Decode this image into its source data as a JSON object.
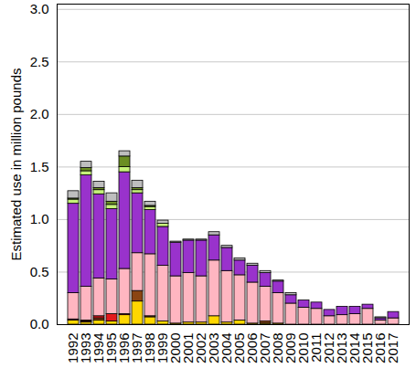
{
  "chart_data": {
    "type": "bar",
    "stacked": true,
    "y_label": "Estimated use in million pounds",
    "categories": [
      "1992",
      "1993",
      "1994",
      "1995",
      "1996",
      "1997",
      "1998",
      "1999",
      "2000",
      "2001",
      "2002",
      "2003",
      "2004",
      "2005",
      "2006",
      "2007",
      "2008",
      "2009",
      "2010",
      "2011",
      "2012",
      "2013",
      "2014",
      "2015",
      "2016",
      "2017"
    ],
    "series": [
      {
        "color": "#ffd700",
        "values": [
          0.04,
          0.02,
          0.04,
          0.03,
          0.09,
          0.22,
          0.07,
          0.03,
          0.01,
          0.02,
          0.02,
          0.08,
          0.02,
          0.04,
          0.01,
          0.01,
          0.01,
          0,
          0,
          0,
          0,
          0,
          0,
          0,
          0,
          0
        ]
      },
      {
        "color": "#8b4513",
        "values": [
          0,
          0.01,
          0.02,
          0,
          0,
          0.1,
          0.01,
          0,
          0,
          0,
          0,
          0,
          0,
          0,
          0,
          0.02,
          0,
          0,
          0,
          0,
          0,
          0,
          0,
          0,
          0,
          0
        ]
      },
      {
        "color": "#e31a1c",
        "values": [
          0.01,
          0.01,
          0.02,
          0.07,
          0.01,
          0,
          0,
          0,
          0,
          0,
          0,
          0,
          0,
          0,
          0,
          0,
          0,
          0,
          0,
          0,
          0,
          0,
          0,
          0,
          0,
          0
        ]
      },
      {
        "color": "#ffb6c1",
        "values": [
          0.25,
          0.32,
          0.36,
          0.33,
          0.43,
          0.36,
          0.59,
          0.53,
          0.45,
          0.47,
          0.44,
          0.53,
          0.49,
          0.43,
          0.39,
          0.33,
          0.29,
          0.2,
          0.16,
          0.15,
          0.08,
          0.09,
          0.1,
          0.15,
          0.04,
          0.06
        ]
      },
      {
        "color": "#9932cc",
        "values": [
          0.85,
          1.06,
          0.8,
          0.67,
          0.92,
          0.57,
          0.42,
          0.37,
          0.32,
          0.31,
          0.34,
          0.24,
          0.22,
          0.14,
          0.16,
          0.13,
          0.11,
          0.08,
          0.07,
          0.06,
          0.06,
          0.08,
          0.07,
          0.04,
          0.02,
          0.06
        ]
      },
      {
        "color": "#c6f27a",
        "values": [
          0.04,
          0.04,
          0.04,
          0.04,
          0.05,
          0.03,
          0.03,
          0.03,
          0,
          0,
          0,
          0,
          0,
          0,
          0,
          0,
          0,
          0,
          0,
          0,
          0,
          0,
          0,
          0,
          0,
          0
        ]
      },
      {
        "color": "#6b8e23",
        "values": [
          0.01,
          0.03,
          0.02,
          0.03,
          0.1,
          0.02,
          0.01,
          0,
          0,
          0,
          0,
          0,
          0,
          0,
          0,
          0,
          0,
          0,
          0,
          0,
          0,
          0,
          0,
          0,
          0,
          0
        ]
      },
      {
        "color": "#bebebe",
        "values": [
          0.07,
          0.06,
          0.06,
          0.08,
          0.05,
          0.07,
          0.04,
          0.03,
          0.01,
          0.01,
          0.01,
          0.03,
          0.02,
          0.02,
          0.02,
          0.02,
          0.01,
          0.02,
          0,
          0,
          0,
          0,
          0,
          0,
          0.01,
          0
        ]
      }
    ],
    "ylim": [
      0,
      3.05
    ],
    "yticks": [
      {
        "value": 0,
        "label": "0.0"
      },
      {
        "value": 0.5,
        "label": "0.5"
      },
      {
        "value": 1,
        "label": "1.0"
      },
      {
        "value": 1.5,
        "label": "1.5"
      },
      {
        "value": 2,
        "label": "2.0"
      },
      {
        "value": 2.5,
        "label": "2.5"
      },
      {
        "value": 3,
        "label": "3.0"
      }
    ],
    "grid": true
  }
}
